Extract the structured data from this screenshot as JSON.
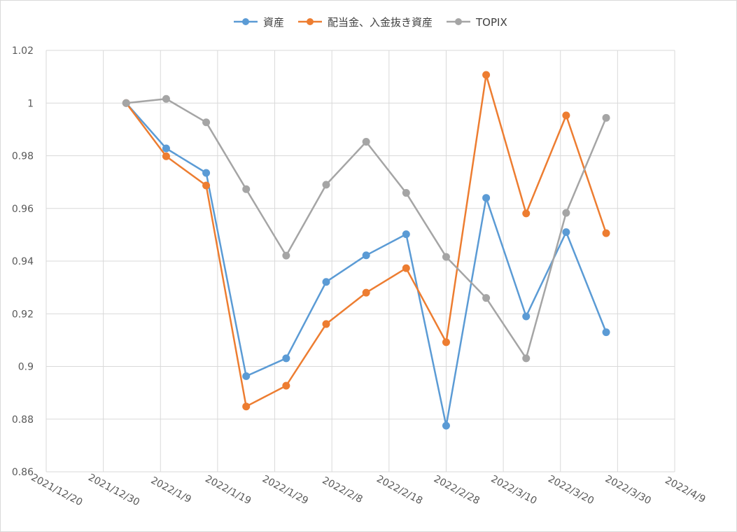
{
  "chart_data": {
    "type": "line",
    "title": "",
    "xlabel": "",
    "ylabel": "",
    "ylim": [
      0.86,
      1.02
    ],
    "yticks": [
      "0.86",
      "0.88",
      "0.9",
      "0.92",
      "0.94",
      "0.96",
      "0.98",
      "1",
      "1.02"
    ],
    "xlim": [
      "2021-12-20",
      "2022-04-09"
    ],
    "xticks": [
      "2021/12/20",
      "2021/12/30",
      "2022/1/9",
      "2022/1/19",
      "2022/1/29",
      "2022/2/8",
      "2022/2/18",
      "2022/2/28",
      "2022/3/10",
      "2022/3/20",
      "2022/3/30",
      "2022/4/9"
    ],
    "grid": true,
    "legend_position": "top",
    "x": [
      "2022-01-03",
      "2022-01-10",
      "2022-01-17",
      "2022-01-24",
      "2022-01-31",
      "2022-02-07",
      "2022-02-14",
      "2022-02-21",
      "2022-02-28",
      "2022-03-07",
      "2022-03-14",
      "2022-03-21",
      "2022-03-28"
    ],
    "series": [
      {
        "name": "資産",
        "color": "#5b9bd5",
        "values": [
          1.0,
          0.9828,
          0.9735,
          0.8963,
          0.9031,
          0.9321,
          0.9422,
          0.9502,
          0.8775,
          0.964,
          0.919,
          0.951,
          0.913
        ]
      },
      {
        "name": "配当金、入金抜き資産",
        "color": "#ed7d31",
        "values": [
          1.0,
          0.9798,
          0.9687,
          0.8848,
          0.8927,
          0.9161,
          0.928,
          0.9373,
          0.9092,
          1.0107,
          0.9581,
          0.9953,
          0.9506
        ]
      },
      {
        "name": "TOPIX",
        "color": "#a5a5a5",
        "values": [
          1.0,
          1.0016,
          0.9927,
          0.9673,
          0.9421,
          0.969,
          0.9853,
          0.9659,
          0.9416,
          0.926,
          0.9031,
          0.9583,
          0.9944
        ]
      }
    ]
  }
}
